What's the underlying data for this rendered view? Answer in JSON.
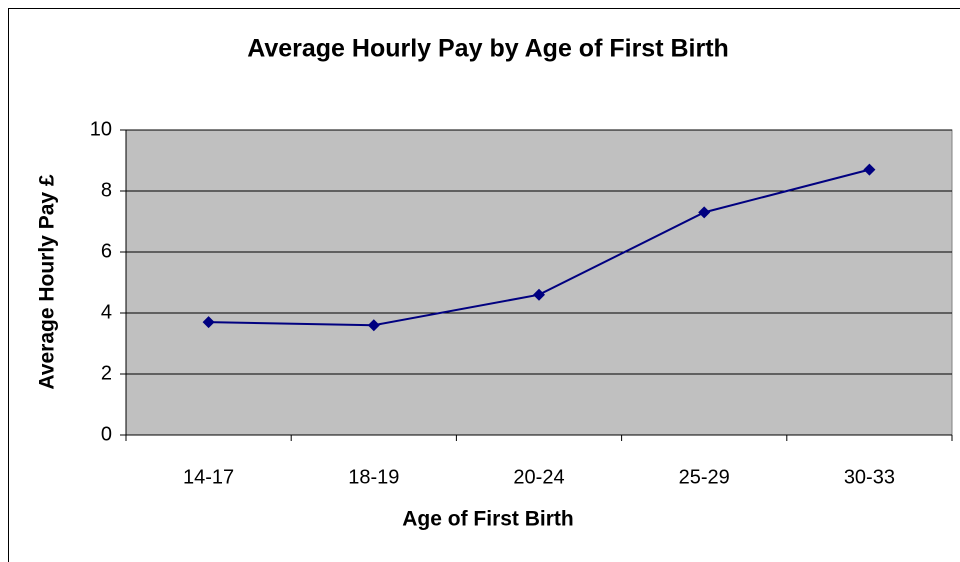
{
  "chart_data": {
    "type": "line",
    "title": "Average Hourly Pay by Age of First Birth",
    "x_label": "Age of First Birth",
    "y_label": "Average Hourly Pay £",
    "categories": [
      "14-17",
      "18-19",
      "20-24",
      "25-29",
      "30-33"
    ],
    "values": [
      3.7,
      3.6,
      4.6,
      7.3,
      8.7
    ],
    "color": "#000080",
    "ylim": [
      0,
      10
    ],
    "yticks": [
      0,
      2,
      4,
      6,
      8,
      10
    ],
    "grid": true
  }
}
